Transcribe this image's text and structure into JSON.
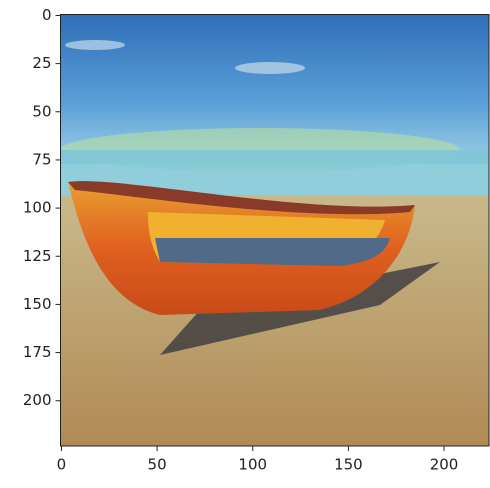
{
  "chart_data": {
    "type": "image",
    "xlim": [
      -0.5,
      223.5
    ],
    "ylim": [
      223.5,
      -0.5
    ],
    "xticks": [
      0,
      50,
      100,
      150,
      200
    ],
    "yticks": [
      0,
      25,
      50,
      75,
      100,
      125,
      150,
      175,
      200
    ]
  }
}
